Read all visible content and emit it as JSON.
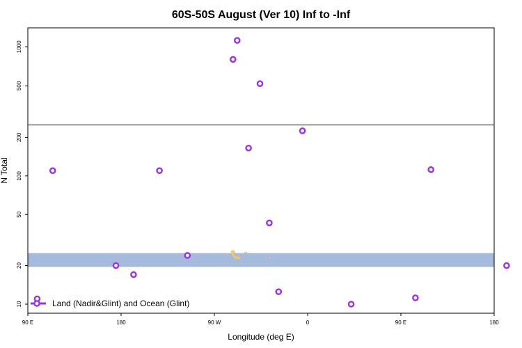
{
  "chart_data": {
    "type": "scatter",
    "title": "60S-50S August (Ver 10)   Inf to -Inf",
    "xlabel": "Longitude (deg E)",
    "ylabel": "N Total",
    "x_ticks": [
      {
        "value": 90,
        "label": "90 E"
      },
      {
        "value": 180,
        "label": "180"
      },
      {
        "value": 270,
        "label": "90 W"
      },
      {
        "value": 360,
        "label": "0"
      },
      {
        "value": 450,
        "label": "90 E"
      },
      {
        "value": 540,
        "label": "180"
      }
    ],
    "xlim": [
      90,
      540
    ],
    "y_scale": "log",
    "y_break_at": 250,
    "y_ticks_lower": [
      10,
      20,
      50,
      100,
      200
    ],
    "y_ticks_upper": [
      500,
      1000
    ],
    "ylim_lower": [
      8.5,
      250
    ],
    "ylim_upper": [
      250,
      1400
    ],
    "grid": false,
    "legend_position": "bottom-left",
    "series": [
      {
        "name": "Land (Nadir&Glint) and Ocean (Glint)",
        "color": "#9b30f0",
        "points": [
          {
            "x": 99,
            "y": 11
          },
          {
            "x": 114,
            "y": 110
          },
          {
            "x": 175,
            "y": 20
          },
          {
            "x": 192,
            "y": 17
          },
          {
            "x": 217,
            "y": 110
          },
          {
            "x": 244,
            "y": 24
          },
          {
            "x": 288,
            "y": 800
          },
          {
            "x": 292,
            "y": 1120
          },
          {
            "x": 303,
            "y": 165
          },
          {
            "x": 314,
            "y": 520
          },
          {
            "x": 323,
            "y": 43
          },
          {
            "x": 332,
            "y": 12.5
          },
          {
            "x": 355,
            "y": 225
          },
          {
            "x": 402,
            "y": 10
          },
          {
            "x": 464,
            "y": 11.2
          },
          {
            "x": 479,
            "y": 112
          },
          {
            "x": 552,
            "y": 20
          }
        ]
      }
    ],
    "highlight_band_y": [
      19.5,
      25
    ],
    "colors": {
      "band": "#a6bbdc",
      "land_marks": "#f2c766",
      "marker": "#9b30f0",
      "axis": "#000000"
    }
  }
}
